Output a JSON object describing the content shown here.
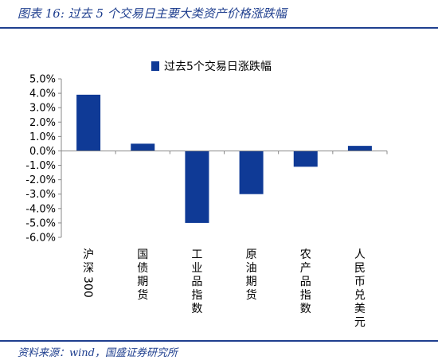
{
  "figure": {
    "title": "图表 16:  过去 5 个交易日主要大类资产价格涨跌幅",
    "source": "资料来源：wind，国盛证券研究所"
  },
  "colors": {
    "bar": "#0f3a96",
    "heading": "#1f3f8f",
    "axis": "#888888"
  },
  "chart_data": {
    "type": "bar",
    "categories": [
      "沪深300",
      "国债期货",
      "工业品指数",
      "原油期货",
      "农产品指数",
      "人民币兑美元"
    ],
    "series": [
      {
        "name": "过去5个交易日涨跌幅",
        "values": [
          3.9,
          0.5,
          -5.0,
          -3.0,
          -1.1,
          0.35
        ]
      }
    ],
    "ylim": [
      -6.0,
      5.0
    ],
    "yticks": [
      5.0,
      4.0,
      3.0,
      2.0,
      1.0,
      0.0,
      -1.0,
      -2.0,
      -3.0,
      -4.0,
      -5.0,
      -6.0
    ],
    "ytick_labels": [
      "5.0%",
      "4.0%",
      "3.0%",
      "2.0%",
      "1.0%",
      "0.0%",
      "-1.0%",
      "-2.0%",
      "-3.0%",
      "-4.0%",
      "-5.0%",
      "-6.0%"
    ],
    "grid": false,
    "legend_position": "top-center"
  }
}
